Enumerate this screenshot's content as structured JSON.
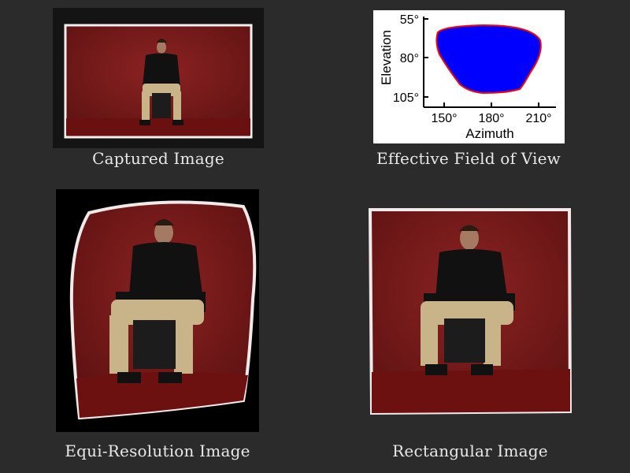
{
  "captions": {
    "captured": "Captured Image",
    "fov": "Effective Field of View",
    "equi": "Equi-Resolution Image",
    "rect": "Rectangular Image"
  },
  "fov_plot": {
    "ylabel": "Elevation",
    "xlabel": "Azimuth",
    "y_ticks": [
      "55°",
      "80°",
      "105°"
    ],
    "x_ticks": [
      "150°",
      "180°",
      "210°"
    ]
  },
  "colors": {
    "background": "#2b2b2b",
    "curtain": "#7a1a1a",
    "region_fill": "#0000ff",
    "region_edge": "#ff0000"
  }
}
